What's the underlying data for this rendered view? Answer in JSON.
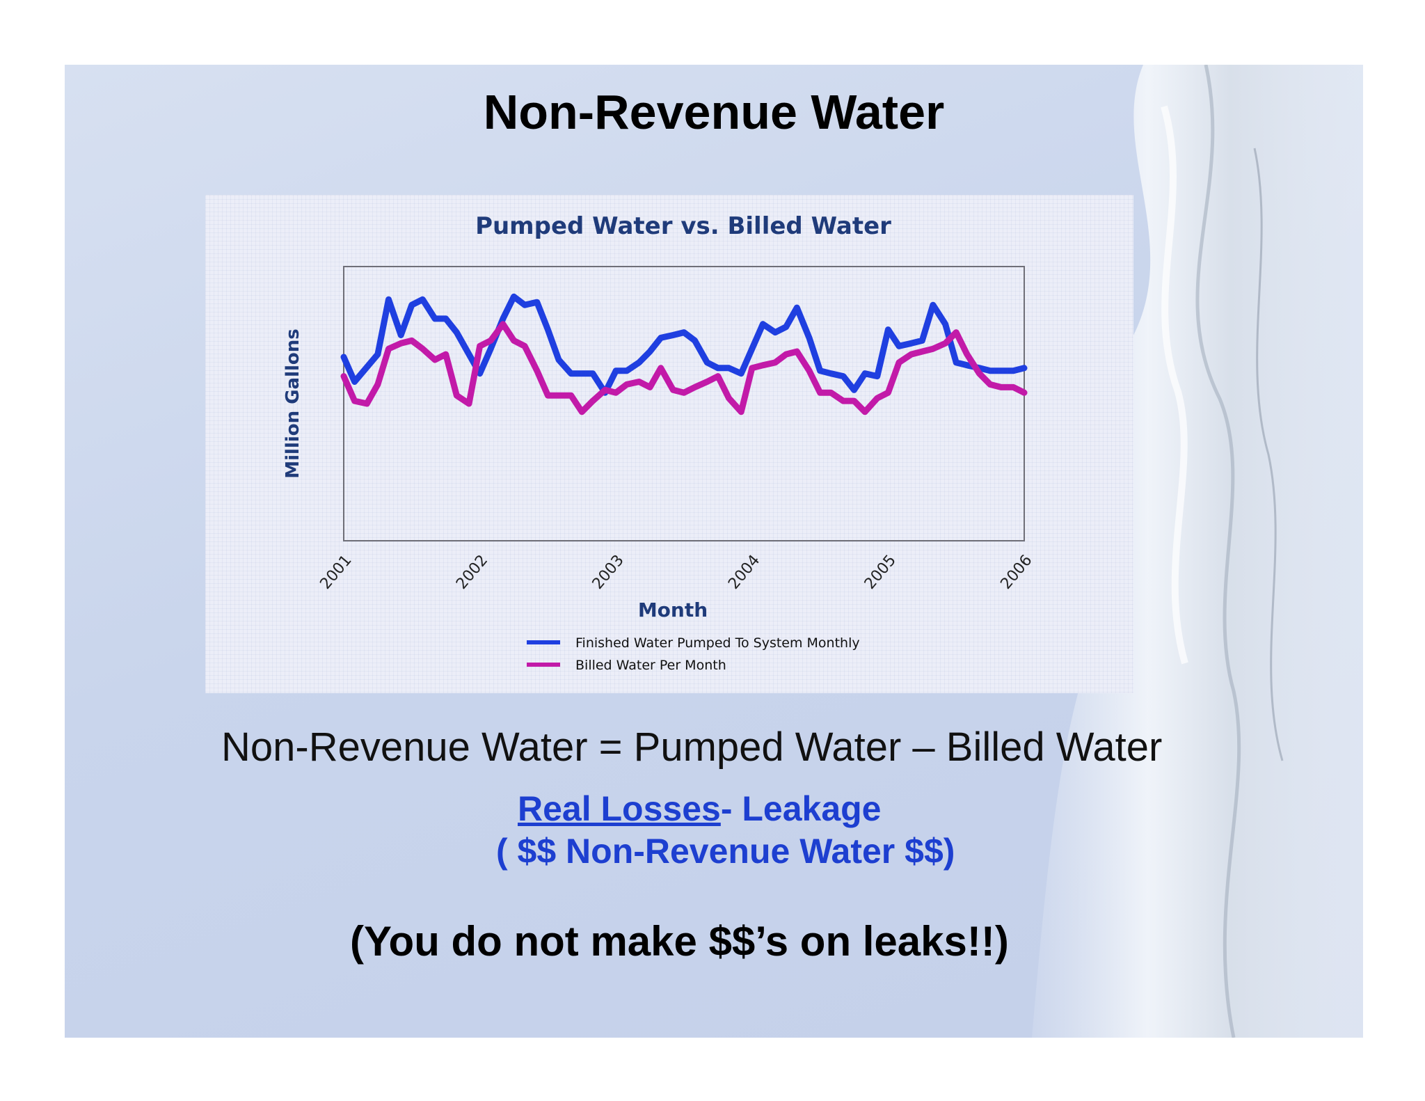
{
  "slide": {
    "title": "Non-Revenue Water",
    "equation": "Non-Revenue Water = Pumped Water – Billed Water",
    "real_losses_link": "Real Losses",
    "real_losses_rest": "- Leakage",
    "nrw_money": "( $$ Non-Revenue Water $$)",
    "leaks_note": "(You do not make $$’s on leaks!!)"
  },
  "colors": {
    "pumped": "#1f3fe0",
    "billed": "#c21aa8",
    "chart_title": "#1f3b7a",
    "text_blue": "#1d3fd0"
  },
  "chart_data": {
    "type": "line",
    "title": "Pumped Water vs. Billed Water",
    "xlabel": "Month",
    "ylabel": "Million Gallons",
    "x_ticks": [
      "2001",
      "2002",
      "2003",
      "2004",
      "2005",
      "2006"
    ],
    "xlim": [
      2001,
      2006
    ],
    "ylim": [
      0,
      100
    ],
    "grid": false,
    "legend_position": "bottom-center",
    "series": [
      {
        "name": "Finished Water Pumped To System Monthly",
        "x": [
          2001.0,
          2001.08,
          2001.25,
          2001.33,
          2001.42,
          2001.5,
          2001.58,
          2001.67,
          2001.75,
          2001.83,
          2001.92,
          2002.0,
          2002.08,
          2002.17,
          2002.25,
          2002.33,
          2002.42,
          2002.5,
          2002.58,
          2002.67,
          2002.75,
          2002.83,
          2002.92,
          2003.0,
          2003.08,
          2003.17,
          2003.25,
          2003.33,
          2003.42,
          2003.5,
          2003.58,
          2003.67,
          2003.75,
          2003.83,
          2003.92,
          2004.0,
          2004.08,
          2004.17,
          2004.25,
          2004.33,
          2004.42,
          2004.5,
          2004.58,
          2004.67,
          2004.75,
          2004.83,
          2004.92,
          2005.0,
          2005.08,
          2005.17,
          2005.25,
          2005.33,
          2005.42,
          2005.5,
          2005.58,
          2005.67,
          2005.75,
          2005.83,
          2005.92,
          2006.0
        ],
        "y": [
          67,
          58,
          68,
          88,
          75,
          86,
          88,
          81,
          81,
          76,
          68,
          61,
          70,
          81,
          89,
          86,
          87,
          77,
          66,
          61,
          61,
          61,
          54,
          62,
          62,
          65,
          69,
          74,
          75,
          76,
          73,
          65,
          63,
          63,
          61,
          70,
          79,
          76,
          78,
          85,
          74,
          62,
          61,
          60,
          55,
          61,
          60,
          77,
          71,
          72,
          73,
          86,
          79,
          65,
          64,
          63,
          62,
          62,
          62,
          63
        ]
      },
      {
        "name": "Billed Water Per Month",
        "x": [
          2001.0,
          2001.08,
          2001.17,
          2001.25,
          2001.33,
          2001.42,
          2001.5,
          2001.58,
          2001.67,
          2001.75,
          2001.83,
          2001.92,
          2002.0,
          2002.08,
          2002.17,
          2002.25,
          2002.33,
          2002.42,
          2002.5,
          2002.58,
          2002.67,
          2002.75,
          2002.83,
          2002.92,
          2003.0,
          2003.08,
          2003.17,
          2003.25,
          2003.33,
          2003.42,
          2003.5,
          2003.58,
          2003.67,
          2003.75,
          2003.83,
          2003.92,
          2004.0,
          2004.08,
          2004.17,
          2004.25,
          2004.33,
          2004.42,
          2004.5,
          2004.58,
          2004.67,
          2004.75,
          2004.83,
          2004.92,
          2005.0,
          2005.08,
          2005.17,
          2005.25,
          2005.33,
          2005.42,
          2005.5,
          2005.58,
          2005.67,
          2005.75,
          2005.83,
          2005.92,
          2006.0
        ],
        "y": [
          60,
          51,
          50,
          57,
          70,
          72,
          73,
          70,
          66,
          68,
          53,
          50,
          71,
          73,
          79,
          73,
          71,
          62,
          53,
          53,
          53,
          47,
          51,
          55,
          54,
          57,
          58,
          56,
          63,
          55,
          54,
          56,
          58,
          60,
          52,
          47,
          63,
          64,
          65,
          68,
          69,
          62,
          54,
          54,
          51,
          51,
          47,
          52,
          54,
          65,
          68,
          69,
          70,
          72,
          76,
          68,
          61,
          57,
          56,
          56,
          54
        ]
      }
    ]
  }
}
